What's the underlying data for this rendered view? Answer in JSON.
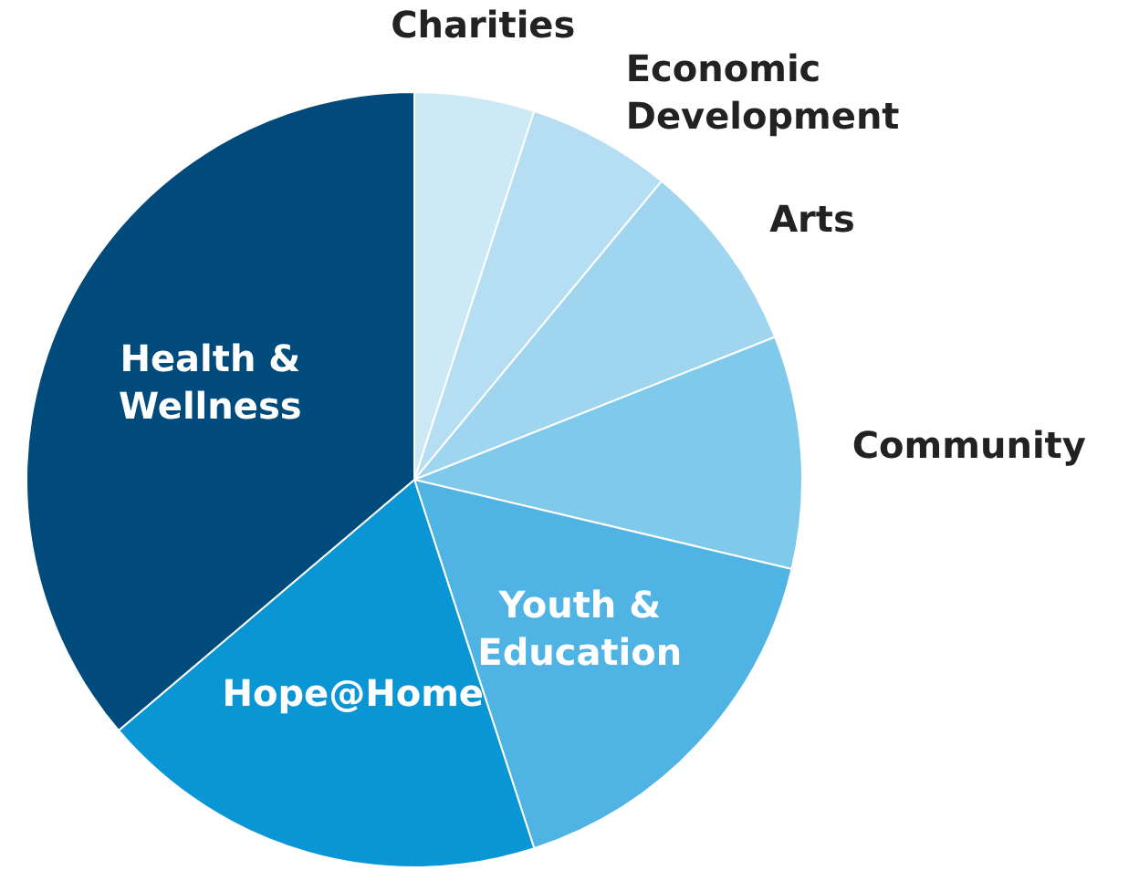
{
  "chart_data": {
    "type": "pie",
    "categories": [
      "Charities",
      "Economic Development",
      "Arts",
      "Community",
      "Youth & Education",
      "Hope@Home",
      "Health & Wellness"
    ],
    "values": [
      5,
      6,
      8,
      9.7,
      16.3,
      18.8,
      36.2
    ],
    "colors": [
      "#cde9f6",
      "#b5def2",
      "#9fd5ef",
      "#7fc9eb",
      "#4fb3e3",
      "#0a95d5",
      "#004a7c"
    ],
    "legend": false
  }
}
